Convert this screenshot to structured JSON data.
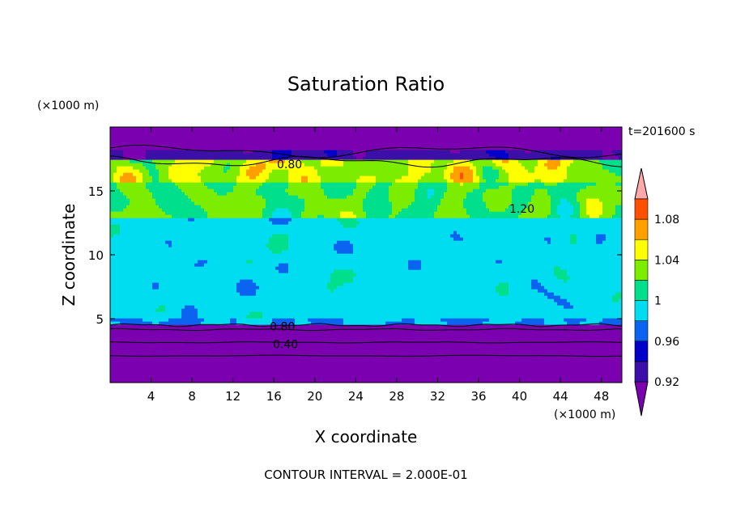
{
  "chart_data": {
    "type": "heatmap",
    "title": "Saturation Ratio",
    "xlabel": "X coordinate",
    "ylabel": "Z coordinate",
    "x_unit": "(×1000 m)",
    "y_unit": "(×1000 m)",
    "time_label": "t=201600 s",
    "footer": "CONTOUR INTERVAL = 2.000E-01",
    "xlim": [
      0,
      50
    ],
    "ylim": [
      0,
      20
    ],
    "x_ticks": [
      4,
      8,
      12,
      16,
      20,
      24,
      28,
      32,
      36,
      40,
      44,
      48
    ],
    "y_ticks": [
      5,
      10,
      15
    ],
    "colorbar": {
      "levels": [
        0.92,
        0.94,
        0.96,
        0.98,
        1.0,
        1.02,
        1.04,
        1.06,
        1.08,
        1.1
      ],
      "tick_labels": [
        "0.92",
        "0.96",
        "1",
        "1.04",
        "1.08"
      ],
      "tick_values": [
        0.92,
        0.96,
        1.0,
        1.04,
        1.08
      ],
      "colors": [
        "#7a00b0",
        "#3c0fa8",
        "#0000c8",
        "#0a64f0",
        "#00dcf0",
        "#00e08c",
        "#7ded00",
        "#ffff00",
        "#ffa000",
        "#ff5000",
        "#ff1e1e",
        "#ffaaaa"
      ]
    },
    "contour_labels": [
      {
        "text": "0.80",
        "x": 16.3,
        "z": 17.1
      },
      {
        "text": "1.20",
        "x": 39.0,
        "z": 13.6
      },
      {
        "text": "0.80",
        "x": 15.6,
        "z": 4.4
      },
      {
        "text": "0.40",
        "x": 15.9,
        "z": 3.0
      }
    ],
    "colors": {
      "dry_purple": "#7a00b0",
      "near_saturated_green": "#7ded00",
      "sea_green": "#00e08c",
      "supersaturated_pink": "#ffaaaa"
    }
  }
}
